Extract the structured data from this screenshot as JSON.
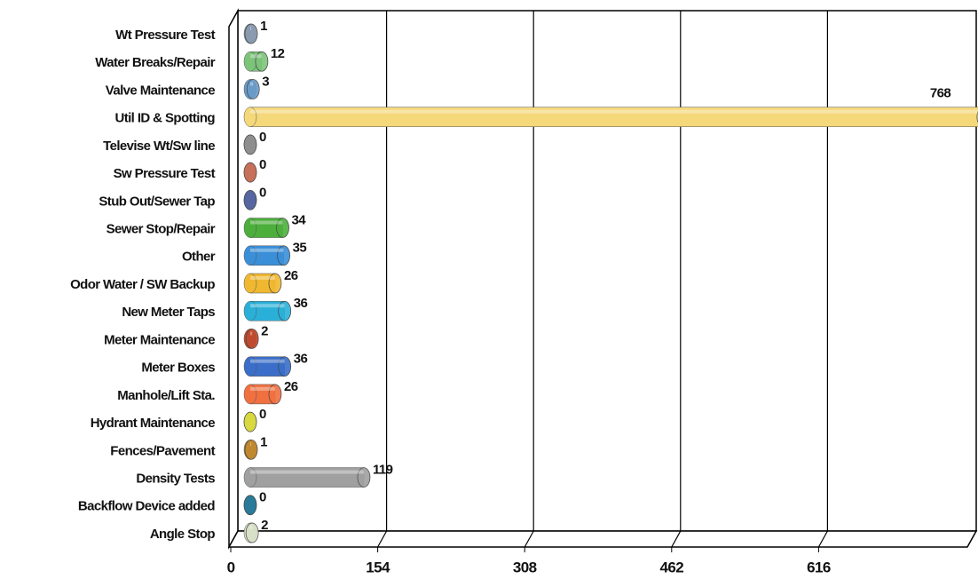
{
  "chart_data": {
    "type": "bar",
    "orientation": "horizontal",
    "categories": [
      "Wt Pressure Test",
      "Water Breaks/Repair",
      "Valve Maintenance",
      "Util ID & Spotting",
      "Televise Wt/Sw line",
      "Sw Pressure Test",
      "Stub Out/Sewer Tap",
      "Sewer Stop/Repair",
      "Other",
      "Odor Water / SW Backup",
      "New Meter Taps",
      "Meter Maintenance",
      "Meter Boxes",
      "Manhole/Lift Sta.",
      "Hydrant Maintenance",
      "Fences/Pavement",
      "Density Tests",
      "Backflow Device added",
      "Angle Stop"
    ],
    "values": [
      1,
      12,
      3,
      768,
      0,
      0,
      0,
      34,
      35,
      26,
      36,
      2,
      36,
      26,
      0,
      1,
      119,
      0,
      2
    ],
    "colors": [
      "#8a9bb0",
      "#7cc47a",
      "#6a9bc8",
      "#f5d87a",
      "#8e8e8e",
      "#c7705a",
      "#5566a0",
      "#4caf3c",
      "#3a8fd8",
      "#f0b830",
      "#2ab0d8",
      "#c04a30",
      "#3a6ec8",
      "#f07040",
      "#d8d840",
      "#c08830",
      "#a0a0a0",
      "#2a7a9a",
      "#d8e0c8"
    ],
    "xlim": [
      0,
      770
    ],
    "xticks": [
      0,
      154,
      308,
      462,
      616
    ],
    "grid": true
  }
}
